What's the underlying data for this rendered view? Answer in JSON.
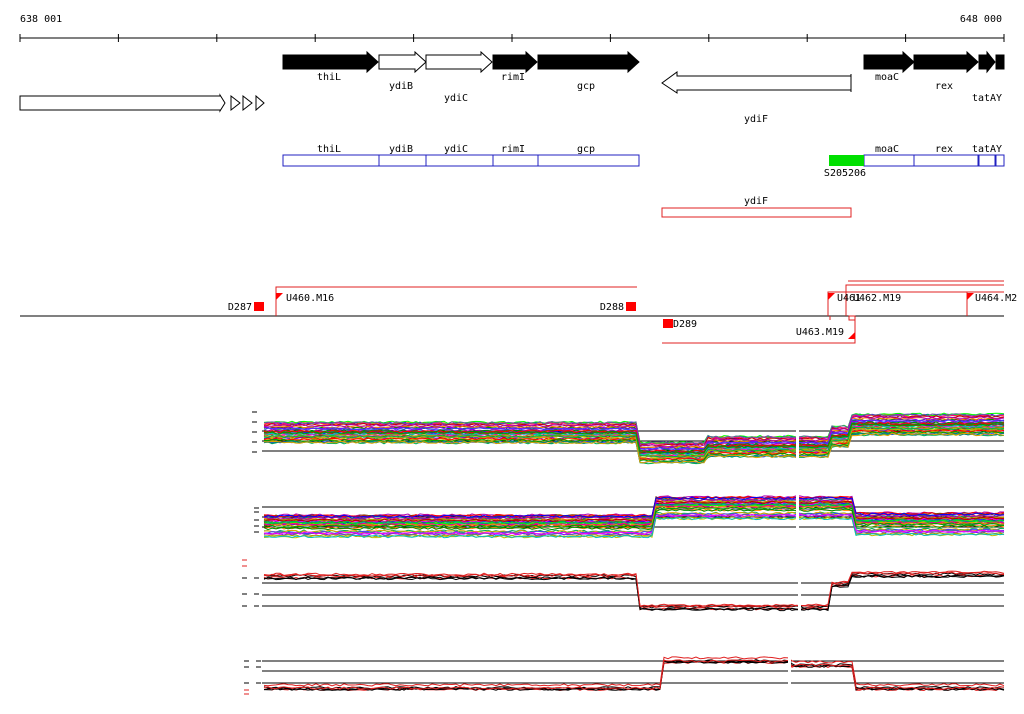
{
  "ruler": {
    "start_label": "638 001",
    "end_label": "648 000",
    "start": 638001,
    "end": 648000
  },
  "colors": {
    "gene_filled": "#000000",
    "gene_open": "#ffffff",
    "annotation": "#2020c0",
    "antisense": "#e02020",
    "segment": "#00e000",
    "marker": "#ff0000"
  },
  "genes": [
    {
      "id": "unnamed-1",
      "label": "",
      "filled": false,
      "dir": "+"
    },
    {
      "id": "tri-1",
      "label": "",
      "filled": false,
      "dir": "+"
    },
    {
      "id": "tri-2",
      "label": "",
      "filled": false,
      "dir": "+"
    },
    {
      "id": "tri-3",
      "label": "",
      "filled": false,
      "dir": "+"
    },
    {
      "id": "thiL",
      "label": "thiL",
      "filled": true,
      "dir": "+"
    },
    {
      "id": "ydiB",
      "label": "ydiB",
      "filled": false,
      "dir": "+"
    },
    {
      "id": "ydiC",
      "label": "ydiC",
      "filled": false,
      "dir": "+"
    },
    {
      "id": "rimI",
      "label": "rimI",
      "filled": true,
      "dir": "+"
    },
    {
      "id": "gcp",
      "label": "gcp",
      "filled": true,
      "dir": "+"
    },
    {
      "id": "ydiF",
      "label": "ydiF",
      "filled": false,
      "dir": "-"
    },
    {
      "id": "moaC",
      "label": "moaC",
      "filled": true,
      "dir": "+"
    },
    {
      "id": "rex",
      "label": "rex",
      "filled": true,
      "dir": "+"
    },
    {
      "id": "tatAY-a",
      "label": "",
      "filled": true,
      "dir": "+"
    },
    {
      "id": "tatAY-b",
      "label": "tatAY",
      "filled": true,
      "dir": "+"
    }
  ],
  "annotations": [
    "thiL",
    "ydiB",
    "ydiC",
    "rimI",
    "gcp",
    "moaC",
    "rex",
    "tatAY"
  ],
  "segment": {
    "label": "S205206"
  },
  "antisense": {
    "label": "ydiF"
  },
  "markers": [
    "D287",
    "U460.M16",
    "D288",
    "D289",
    "U461",
    "U462.M19",
    "U463.M19",
    "U464.M2"
  ]
}
